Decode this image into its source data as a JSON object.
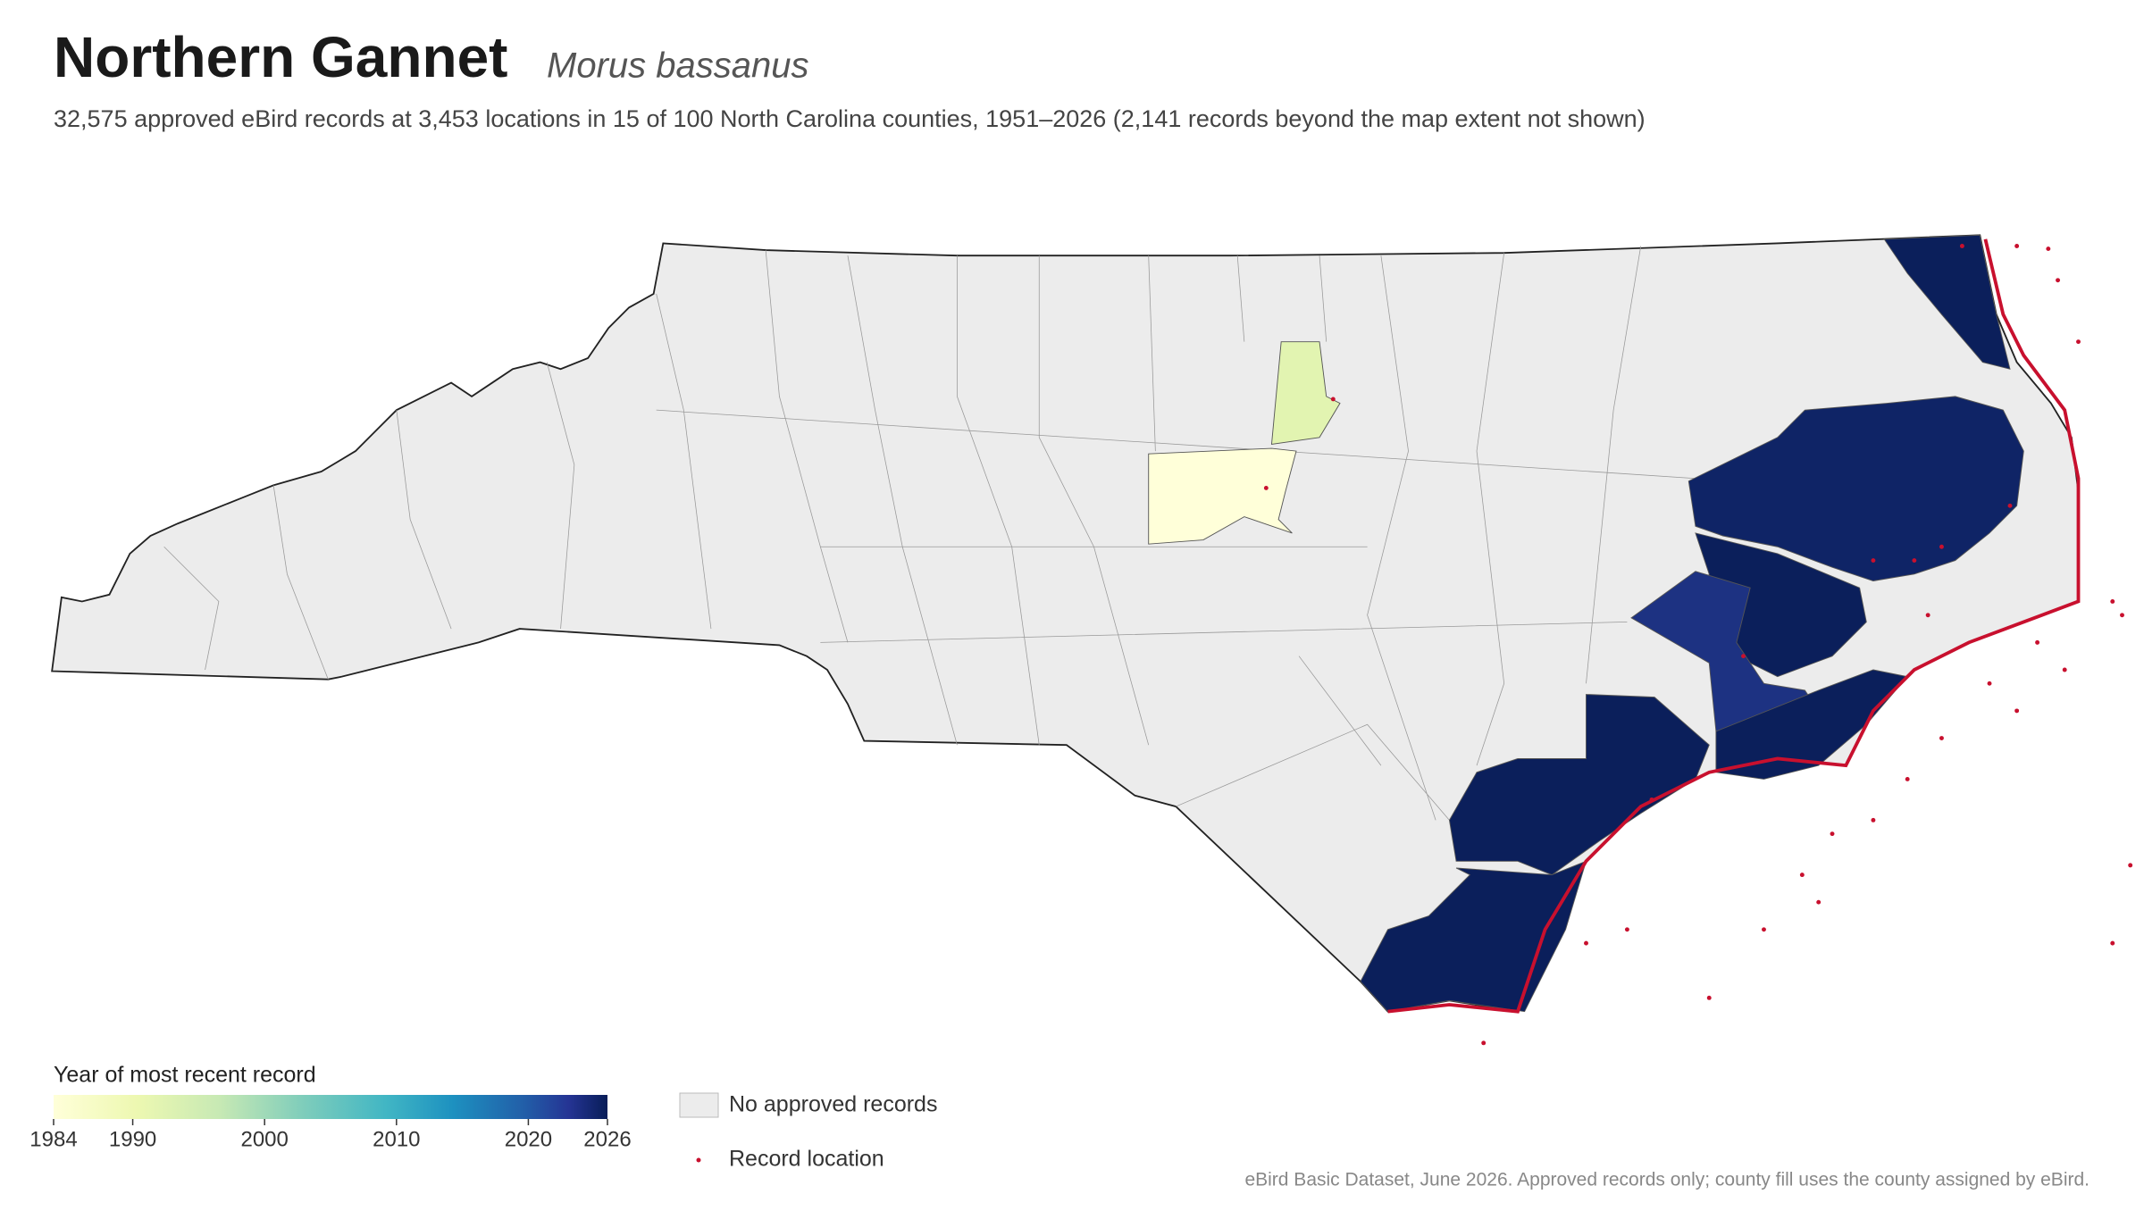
{
  "header": {
    "title": "Northern Gannet",
    "species": "Morus bassanus",
    "subtitle": "32,575 approved eBird records at 3,453 locations in 15 of 100 North Carolina counties, 1951–2026 (2,141 records beyond the map extent not shown)"
  },
  "legend": {
    "title": "Year of most recent record",
    "range": [
      1984,
      2026
    ],
    "ticks": [
      1984,
      1990,
      2000,
      2010,
      2020,
      2026
    ],
    "no_records": "No approved records",
    "record_location": "Record location"
  },
  "footer": "eBird Basic Dataset, June 2026. Approved records only; county fill uses the county assigned by eBird."
}
